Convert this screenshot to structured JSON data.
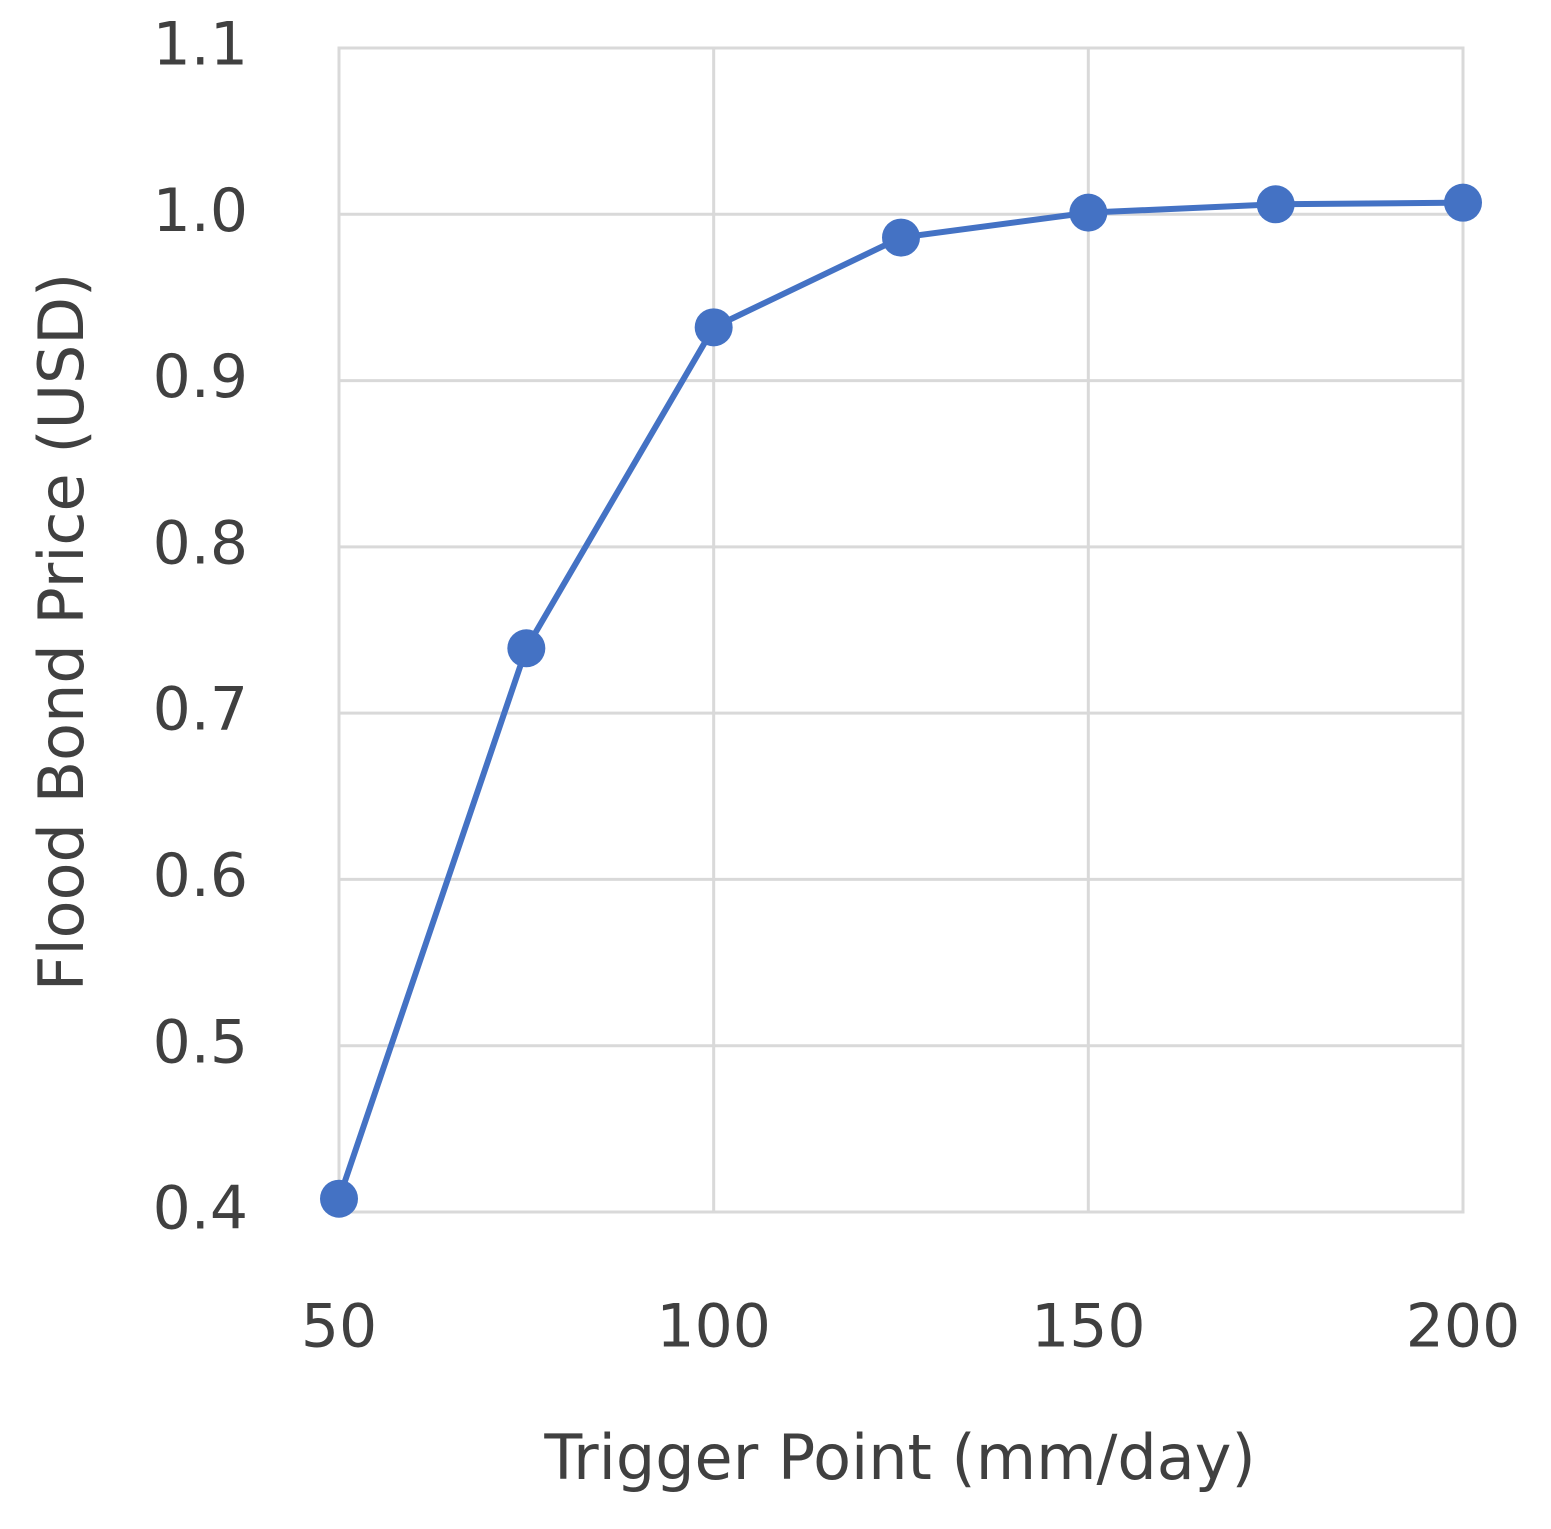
{
  "chart_data": {
    "type": "line",
    "x_label": "Trigger Point (mm/day)",
    "y_label": "Flood Bond Price (USD)",
    "x": [
      50,
      75,
      100,
      125,
      150,
      175,
      200
    ],
    "series": [
      {
        "color": "#4472c4",
        "values": [
          0.408,
          0.739,
          0.932,
          0.986,
          1.001,
          1.006,
          1.007
        ]
      }
    ],
    "xlim": [
      50,
      200
    ],
    "xticks": [
      50,
      100,
      150,
      200
    ],
    "ylim": [
      0.4,
      1.1
    ],
    "yticks": [
      0.4,
      0.5,
      0.6,
      0.7,
      0.8,
      0.9,
      {
        "value": 1,
        "label": "1.0"
      },
      1.1
    ],
    "grid": true,
    "markers": true
  }
}
